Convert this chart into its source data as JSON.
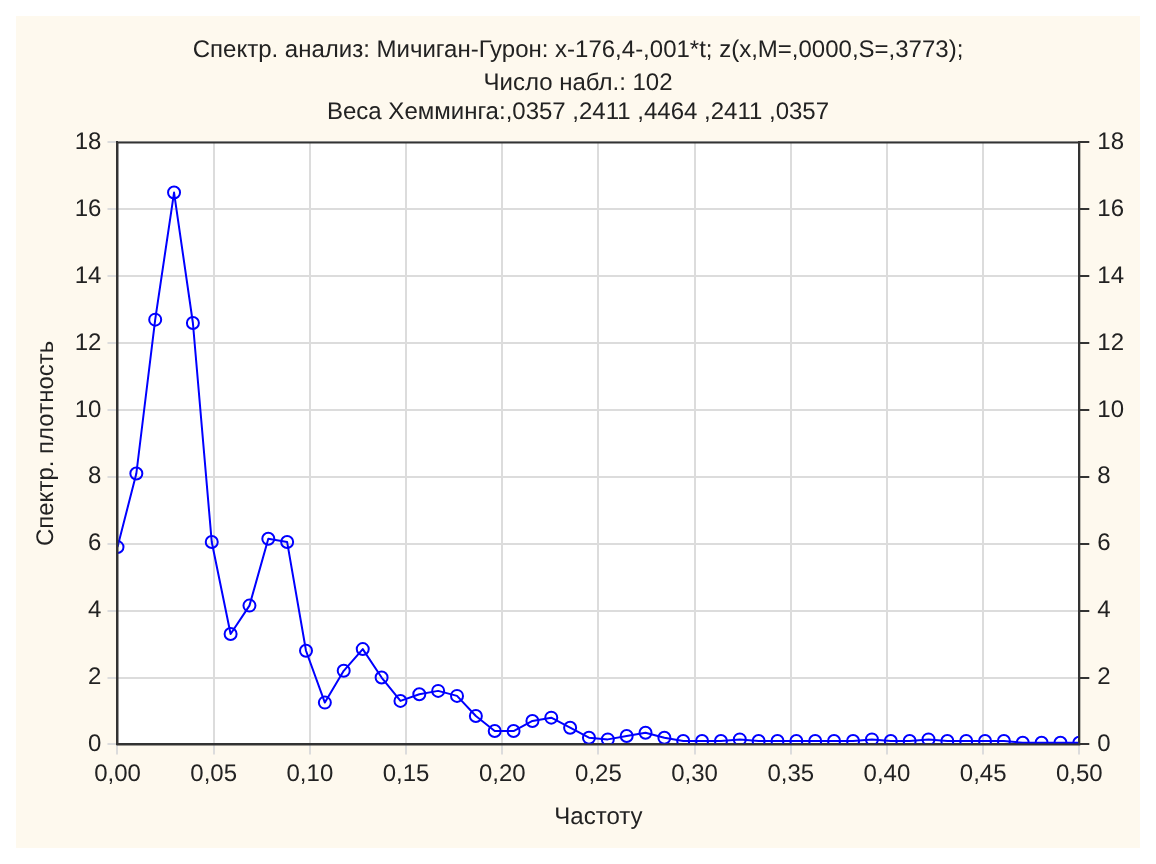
{
  "chart_data": {
    "type": "line",
    "title": "Спектр. анализ: Мичиган-Гурон: x-176,4-,001*t; z(x,M=,0000,S=,3773);",
    "subtitle": [
      "Число набл.: 102",
      "Веса Хемминга:,0357 ,2411 ,4464 ,2411 ,0357"
    ],
    "xlabel": "Частоту",
    "ylabel": "Спектр. плотность",
    "x": [
      0,
      0.0098,
      0.0196,
      0.0294,
      0.0392,
      0.049,
      0.0588,
      0.0686,
      0.0784,
      0.0882,
      0.098,
      0.1078,
      0.1176,
      0.1275,
      0.1373,
      0.1471,
      0.1569,
      0.1667,
      0.1765,
      0.1863,
      0.1961,
      0.2059,
      0.2157,
      0.2255,
      0.2353,
      0.2451,
      0.2549,
      0.2647,
      0.2745,
      0.2843,
      0.2941,
      0.3039,
      0.3137,
      0.3235,
      0.3333,
      0.3431,
      0.3529,
      0.3627,
      0.3725,
      0.3824,
      0.3922,
      0.402,
      0.4118,
      0.4216,
      0.4314,
      0.4412,
      0.451,
      0.4608,
      0.4706,
      0.4804,
      0.4902,
      0.5
    ],
    "series": [
      {
        "color": "#0000ff",
        "values": [
          5.9,
          8.1,
          12.7,
          16.5,
          12.6,
          6.05,
          3.3,
          4.15,
          6.15,
          6.05,
          2.8,
          1.25,
          2.2,
          2.85,
          2.0,
          1.3,
          1.5,
          1.6,
          1.45,
          0.85,
          0.4,
          0.4,
          0.7,
          0.8,
          0.5,
          0.2,
          0.15,
          0.25,
          0.35,
          0.2,
          0.1,
          0.1,
          0.1,
          0.15,
          0.1,
          0.1,
          0.1,
          0.1,
          0.1,
          0.1,
          0.15,
          0.1,
          0.1,
          0.15,
          0.1,
          0.1,
          0.1,
          0.1,
          0.05,
          0.05,
          0.05,
          0.05
        ]
      }
    ],
    "marker": "circle",
    "line_style": "solid",
    "grid": true,
    "legend": false,
    "xlim": [
      0,
      0.5
    ],
    "xticks": [
      {
        "value": 0,
        "label": "0,00"
      },
      {
        "value": 0.05,
        "label": "0,05"
      },
      {
        "value": 0.1,
        "label": "0,10"
      },
      {
        "value": 0.15,
        "label": "0,15"
      },
      {
        "value": 0.2,
        "label": "0,20"
      },
      {
        "value": 0.25,
        "label": "0,25"
      },
      {
        "value": 0.3,
        "label": "0,30"
      },
      {
        "value": 0.35,
        "label": "0,35"
      },
      {
        "value": 0.4,
        "label": "0,40"
      },
      {
        "value": 0.45,
        "label": "0,45"
      },
      {
        "value": 0.5,
        "label": "0,50"
      }
    ],
    "ylim": [
      0,
      18
    ],
    "yticks": [
      0,
      2,
      4,
      6,
      8,
      10,
      12,
      14,
      16,
      18
    ],
    "y2lim": [
      0,
      18
    ],
    "y2ticks": [
      0,
      2,
      4,
      6,
      8,
      10,
      12,
      14,
      16,
      18
    ]
  }
}
